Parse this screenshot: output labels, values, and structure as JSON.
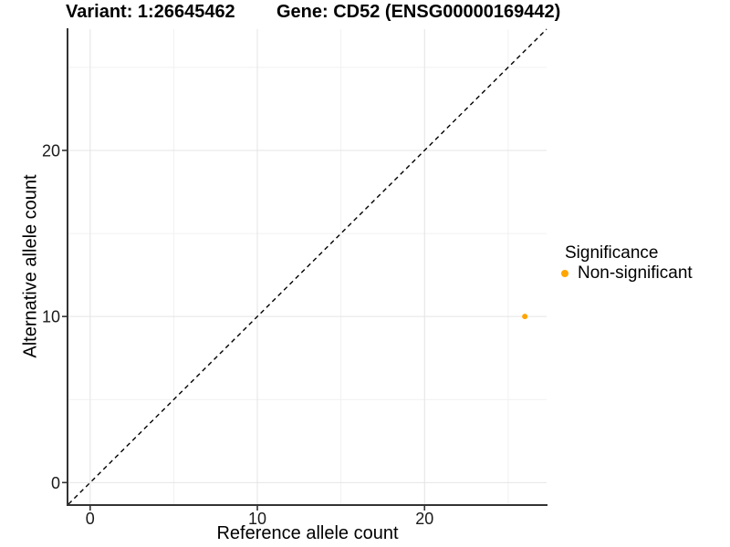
{
  "figure": {
    "title_left": "Variant: 1:26645462",
    "title_right": "Gene: CD52 (ENSG00000169442)"
  },
  "chart_data": {
    "type": "scatter",
    "title_left": "Variant: 1:26645462",
    "title_right": "Gene: CD52 (ENSG00000169442)",
    "xlabel": "Reference allele count",
    "ylabel": "Alternative allele count",
    "xlim": [
      -1.3,
      27.3
    ],
    "ylim": [
      -1.3,
      27.3
    ],
    "x_major_ticks": [
      0,
      10,
      20
    ],
    "y_major_ticks": [
      0,
      10,
      20
    ],
    "x_minor_ticks": [
      5,
      15,
      25
    ],
    "y_minor_ticks": [
      5,
      15,
      25
    ],
    "grid": {
      "show": true,
      "major_color": "#e4e4e4",
      "minor_color": "#f1f1f1"
    },
    "identity_line": {
      "style": "dashed",
      "color": "#000000",
      "slope": 1,
      "intercept": 0
    },
    "series": [
      {
        "name": "Non-significant",
        "color": "#FFA500",
        "points": [
          {
            "x": 26,
            "y": 10
          }
        ]
      }
    ],
    "legend": {
      "title": "Significance",
      "position": "right",
      "entries": [
        {
          "label": "Non-significant",
          "color": "#FFA500"
        }
      ]
    },
    "axis_color": "#333333",
    "tick_label_color": "#1a1a1a"
  }
}
